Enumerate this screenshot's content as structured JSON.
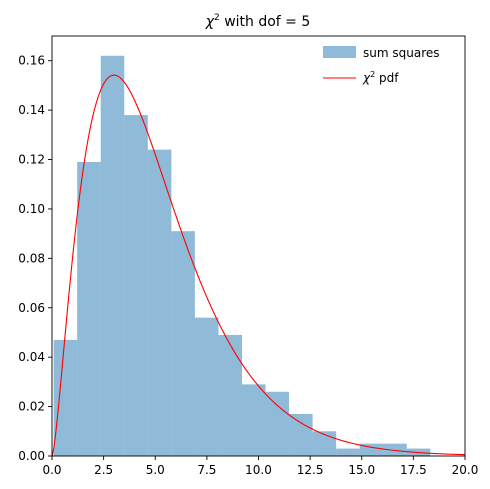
{
  "chart_data": {
    "type": "bar",
    "title": {
      "prefix": "χ",
      "sup": "2",
      "suffix": " with dof = 5"
    },
    "xlim": [
      0,
      20
    ],
    "ylim": [
      0,
      0.17
    ],
    "xticks": [
      0,
      2.5,
      5,
      7.5,
      10,
      12.5,
      15,
      17.5,
      20
    ],
    "xtick_labels": [
      "0.0",
      "2.5",
      "5.0",
      "7.5",
      "10.0",
      "12.5",
      "15.0",
      "17.5",
      "20.0"
    ],
    "yticks": [
      0,
      0.02,
      0.04,
      0.06,
      0.08,
      0.1,
      0.12,
      0.14,
      0.16
    ],
    "ytick_labels": [
      "0.00",
      "0.02",
      "0.04",
      "0.06",
      "0.08",
      "0.10",
      "0.12",
      "0.14",
      "0.16"
    ],
    "series": [
      {
        "name": "sum squares",
        "kind": "histogram",
        "color": "#1f77b4",
        "opacity": 0.5,
        "bin_edges": [
          0.08,
          1.22,
          2.36,
          3.5,
          4.64,
          5.78,
          6.92,
          8.06,
          9.2,
          10.34,
          11.48,
          12.62,
          13.76,
          14.9,
          16.04,
          17.18,
          18.32
        ],
        "values": [
          0.047,
          0.119,
          0.162,
          0.138,
          0.124,
          0.091,
          0.056,
          0.049,
          0.029,
          0.026,
          0.017,
          0.01,
          0.003,
          0.005,
          0.005,
          0.003
        ]
      },
      {
        "name": "χ² pdf",
        "label": {
          "prefix": "χ",
          "sup": "2",
          "suffix": " pdf"
        },
        "kind": "line",
        "color": "#ff0000",
        "dof": 5
      }
    ],
    "legend_position": "top-right",
    "grid": false
  }
}
